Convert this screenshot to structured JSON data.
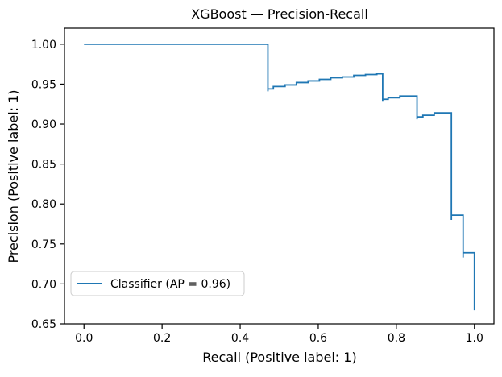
{
  "chart_data": {
    "type": "line",
    "title": "XGBoost — Precision-Recall",
    "xlabel": "Recall (Positive label: 1)",
    "ylabel": "Precision (Positive label: 1)",
    "xlim": [
      -0.05,
      1.05
    ],
    "ylim": [
      0.65,
      1.02
    ],
    "xticks": [
      0.0,
      0.2,
      0.4,
      0.6,
      0.8,
      1.0
    ],
    "xtick_labels": [
      "0.0",
      "0.2",
      "0.4",
      "0.6",
      "0.8",
      "1.0"
    ],
    "yticks": [
      0.65,
      0.7,
      0.75,
      0.8,
      0.85,
      0.9,
      0.95,
      1.0
    ],
    "ytick_labels": [
      "0.65",
      "0.70",
      "0.75",
      "0.80",
      "0.85",
      "0.90",
      "0.95",
      "1.00"
    ],
    "grid": false,
    "legend": {
      "position": "lower-left",
      "entries": [
        {
          "label": "Classifier (AP = 0.96)",
          "color": "#1f77b4"
        }
      ]
    },
    "series": [
      {
        "name": "Classifier (AP = 0.96)",
        "color": "#1f77b4",
        "drawstyle": "steps-post",
        "points": [
          [
            0.0,
            1.0
          ],
          [
            0.471,
            0.941
          ],
          [
            0.471,
            0.944
          ],
          [
            0.485,
            0.947
          ],
          [
            0.515,
            0.949
          ],
          [
            0.544,
            0.952
          ],
          [
            0.574,
            0.954
          ],
          [
            0.603,
            0.956
          ],
          [
            0.632,
            0.958
          ],
          [
            0.662,
            0.959
          ],
          [
            0.691,
            0.961
          ],
          [
            0.721,
            0.962
          ],
          [
            0.75,
            0.963
          ],
          [
            0.765,
            0.929
          ],
          [
            0.765,
            0.931
          ],
          [
            0.779,
            0.933
          ],
          [
            0.809,
            0.935
          ],
          [
            0.853,
            0.906
          ],
          [
            0.853,
            0.909
          ],
          [
            0.868,
            0.911
          ],
          [
            0.897,
            0.914
          ],
          [
            0.941,
            0.78
          ],
          [
            0.941,
            0.786
          ],
          [
            0.971,
            0.733
          ],
          [
            0.971,
            0.739
          ],
          [
            1.0,
            0.667
          ]
        ]
      }
    ]
  }
}
